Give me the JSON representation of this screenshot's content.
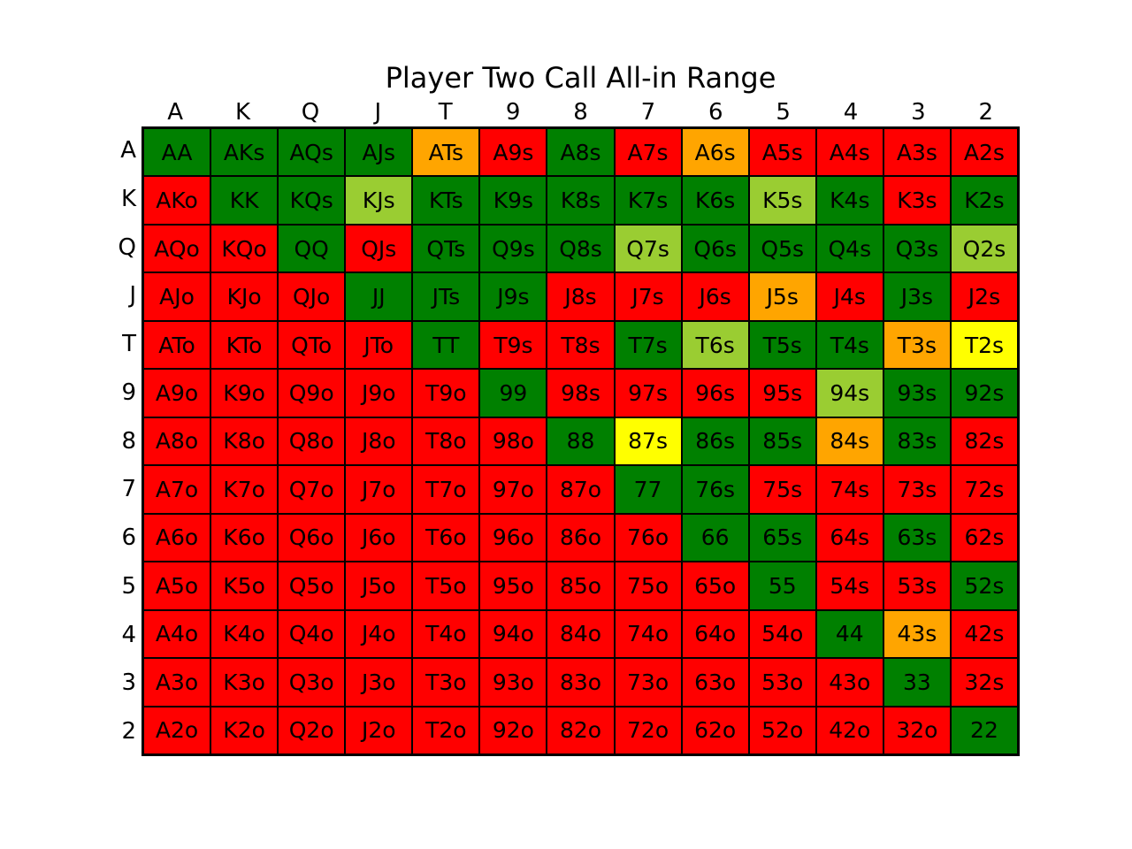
{
  "chart_data": {
    "type": "heatmap",
    "title": "Player Two Call All-in Range",
    "columns": [
      "A",
      "K",
      "Q",
      "J",
      "T",
      "9",
      "8",
      "7",
      "6",
      "5",
      "4",
      "3",
      "2"
    ],
    "rows": [
      "A",
      "K",
      "Q",
      "J",
      "T",
      "9",
      "8",
      "7",
      "6",
      "5",
      "4",
      "3",
      "2"
    ],
    "colors": {
      "G": "#008000",
      "L": "#9acd32",
      "O": "#ffa500",
      "Y": "#ffff00",
      "R": "#ff0000"
    },
    "cells": [
      [
        {
          "label": "AA",
          "c": "G"
        },
        {
          "label": "AKs",
          "c": "G"
        },
        {
          "label": "AQs",
          "c": "G"
        },
        {
          "label": "AJs",
          "c": "G"
        },
        {
          "label": "ATs",
          "c": "O"
        },
        {
          "label": "A9s",
          "c": "R"
        },
        {
          "label": "A8s",
          "c": "G"
        },
        {
          "label": "A7s",
          "c": "R"
        },
        {
          "label": "A6s",
          "c": "O"
        },
        {
          "label": "A5s",
          "c": "R"
        },
        {
          "label": "A4s",
          "c": "R"
        },
        {
          "label": "A3s",
          "c": "R"
        },
        {
          "label": "A2s",
          "c": "R"
        }
      ],
      [
        {
          "label": "AKo",
          "c": "R"
        },
        {
          "label": "KK",
          "c": "G"
        },
        {
          "label": "KQs",
          "c": "G"
        },
        {
          "label": "KJs",
          "c": "L"
        },
        {
          "label": "KTs",
          "c": "G"
        },
        {
          "label": "K9s",
          "c": "G"
        },
        {
          "label": "K8s",
          "c": "G"
        },
        {
          "label": "K7s",
          "c": "G"
        },
        {
          "label": "K6s",
          "c": "G"
        },
        {
          "label": "K5s",
          "c": "L"
        },
        {
          "label": "K4s",
          "c": "G"
        },
        {
          "label": "K3s",
          "c": "R"
        },
        {
          "label": "K2s",
          "c": "G"
        }
      ],
      [
        {
          "label": "AQo",
          "c": "R"
        },
        {
          "label": "KQo",
          "c": "R"
        },
        {
          "label": "QQ",
          "c": "G"
        },
        {
          "label": "QJs",
          "c": "R"
        },
        {
          "label": "QTs",
          "c": "G"
        },
        {
          "label": "Q9s",
          "c": "G"
        },
        {
          "label": "Q8s",
          "c": "G"
        },
        {
          "label": "Q7s",
          "c": "L"
        },
        {
          "label": "Q6s",
          "c": "G"
        },
        {
          "label": "Q5s",
          "c": "G"
        },
        {
          "label": "Q4s",
          "c": "G"
        },
        {
          "label": "Q3s",
          "c": "G"
        },
        {
          "label": "Q2s",
          "c": "L"
        }
      ],
      [
        {
          "label": "AJo",
          "c": "R"
        },
        {
          "label": "KJo",
          "c": "R"
        },
        {
          "label": "QJo",
          "c": "R"
        },
        {
          "label": "JJ",
          "c": "G"
        },
        {
          "label": "JTs",
          "c": "G"
        },
        {
          "label": "J9s",
          "c": "G"
        },
        {
          "label": "J8s",
          "c": "R"
        },
        {
          "label": "J7s",
          "c": "R"
        },
        {
          "label": "J6s",
          "c": "R"
        },
        {
          "label": "J5s",
          "c": "O"
        },
        {
          "label": "J4s",
          "c": "R"
        },
        {
          "label": "J3s",
          "c": "G"
        },
        {
          "label": "J2s",
          "c": "R"
        }
      ],
      [
        {
          "label": "ATo",
          "c": "R"
        },
        {
          "label": "KTo",
          "c": "R"
        },
        {
          "label": "QTo",
          "c": "R"
        },
        {
          "label": "JTo",
          "c": "R"
        },
        {
          "label": "TT",
          "c": "G"
        },
        {
          "label": "T9s",
          "c": "R"
        },
        {
          "label": "T8s",
          "c": "R"
        },
        {
          "label": "T7s",
          "c": "G"
        },
        {
          "label": "T6s",
          "c": "L"
        },
        {
          "label": "T5s",
          "c": "G"
        },
        {
          "label": "T4s",
          "c": "G"
        },
        {
          "label": "T3s",
          "c": "O"
        },
        {
          "label": "T2s",
          "c": "Y"
        }
      ],
      [
        {
          "label": "A9o",
          "c": "R"
        },
        {
          "label": "K9o",
          "c": "R"
        },
        {
          "label": "Q9o",
          "c": "R"
        },
        {
          "label": "J9o",
          "c": "R"
        },
        {
          "label": "T9o",
          "c": "R"
        },
        {
          "label": "99",
          "c": "G"
        },
        {
          "label": "98s",
          "c": "R"
        },
        {
          "label": "97s",
          "c": "R"
        },
        {
          "label": "96s",
          "c": "R"
        },
        {
          "label": "95s",
          "c": "R"
        },
        {
          "label": "94s",
          "c": "L"
        },
        {
          "label": "93s",
          "c": "G"
        },
        {
          "label": "92s",
          "c": "G"
        }
      ],
      [
        {
          "label": "A8o",
          "c": "R"
        },
        {
          "label": "K8o",
          "c": "R"
        },
        {
          "label": "Q8o",
          "c": "R"
        },
        {
          "label": "J8o",
          "c": "R"
        },
        {
          "label": "T8o",
          "c": "R"
        },
        {
          "label": "98o",
          "c": "R"
        },
        {
          "label": "88",
          "c": "G"
        },
        {
          "label": "87s",
          "c": "Y"
        },
        {
          "label": "86s",
          "c": "G"
        },
        {
          "label": "85s",
          "c": "G"
        },
        {
          "label": "84s",
          "c": "O"
        },
        {
          "label": "83s",
          "c": "G"
        },
        {
          "label": "82s",
          "c": "R"
        }
      ],
      [
        {
          "label": "A7o",
          "c": "R"
        },
        {
          "label": "K7o",
          "c": "R"
        },
        {
          "label": "Q7o",
          "c": "R"
        },
        {
          "label": "J7o",
          "c": "R"
        },
        {
          "label": "T7o",
          "c": "R"
        },
        {
          "label": "97o",
          "c": "R"
        },
        {
          "label": "87o",
          "c": "R"
        },
        {
          "label": "77",
          "c": "G"
        },
        {
          "label": "76s",
          "c": "G"
        },
        {
          "label": "75s",
          "c": "R"
        },
        {
          "label": "74s",
          "c": "R"
        },
        {
          "label": "73s",
          "c": "R"
        },
        {
          "label": "72s",
          "c": "R"
        }
      ],
      [
        {
          "label": "A6o",
          "c": "R"
        },
        {
          "label": "K6o",
          "c": "R"
        },
        {
          "label": "Q6o",
          "c": "R"
        },
        {
          "label": "J6o",
          "c": "R"
        },
        {
          "label": "T6o",
          "c": "R"
        },
        {
          "label": "96o",
          "c": "R"
        },
        {
          "label": "86o",
          "c": "R"
        },
        {
          "label": "76o",
          "c": "R"
        },
        {
          "label": "66",
          "c": "G"
        },
        {
          "label": "65s",
          "c": "G"
        },
        {
          "label": "64s",
          "c": "R"
        },
        {
          "label": "63s",
          "c": "G"
        },
        {
          "label": "62s",
          "c": "R"
        }
      ],
      [
        {
          "label": "A5o",
          "c": "R"
        },
        {
          "label": "K5o",
          "c": "R"
        },
        {
          "label": "Q5o",
          "c": "R"
        },
        {
          "label": "J5o",
          "c": "R"
        },
        {
          "label": "T5o",
          "c": "R"
        },
        {
          "label": "95o",
          "c": "R"
        },
        {
          "label": "85o",
          "c": "R"
        },
        {
          "label": "75o",
          "c": "R"
        },
        {
          "label": "65o",
          "c": "R"
        },
        {
          "label": "55",
          "c": "G"
        },
        {
          "label": "54s",
          "c": "R"
        },
        {
          "label": "53s",
          "c": "R"
        },
        {
          "label": "52s",
          "c": "G"
        }
      ],
      [
        {
          "label": "A4o",
          "c": "R"
        },
        {
          "label": "K4o",
          "c": "R"
        },
        {
          "label": "Q4o",
          "c": "R"
        },
        {
          "label": "J4o",
          "c": "R"
        },
        {
          "label": "T4o",
          "c": "R"
        },
        {
          "label": "94o",
          "c": "R"
        },
        {
          "label": "84o",
          "c": "R"
        },
        {
          "label": "74o",
          "c": "R"
        },
        {
          "label": "64o",
          "c": "R"
        },
        {
          "label": "54o",
          "c": "R"
        },
        {
          "label": "44",
          "c": "G"
        },
        {
          "label": "43s",
          "c": "O"
        },
        {
          "label": "42s",
          "c": "R"
        }
      ],
      [
        {
          "label": "A3o",
          "c": "R"
        },
        {
          "label": "K3o",
          "c": "R"
        },
        {
          "label": "Q3o",
          "c": "R"
        },
        {
          "label": "J3o",
          "c": "R"
        },
        {
          "label": "T3o",
          "c": "R"
        },
        {
          "label": "93o",
          "c": "R"
        },
        {
          "label": "83o",
          "c": "R"
        },
        {
          "label": "73o",
          "c": "R"
        },
        {
          "label": "63o",
          "c": "R"
        },
        {
          "label": "53o",
          "c": "R"
        },
        {
          "label": "43o",
          "c": "R"
        },
        {
          "label": "33",
          "c": "G"
        },
        {
          "label": "32s",
          "c": "R"
        }
      ],
      [
        {
          "label": "A2o",
          "c": "R"
        },
        {
          "label": "K2o",
          "c": "R"
        },
        {
          "label": "Q2o",
          "c": "R"
        },
        {
          "label": "J2o",
          "c": "R"
        },
        {
          "label": "T2o",
          "c": "R"
        },
        {
          "label": "92o",
          "c": "R"
        },
        {
          "label": "82o",
          "c": "R"
        },
        {
          "label": "72o",
          "c": "R"
        },
        {
          "label": "62o",
          "c": "R"
        },
        {
          "label": "52o",
          "c": "R"
        },
        {
          "label": "42o",
          "c": "R"
        },
        {
          "label": "32o",
          "c": "R"
        },
        {
          "label": "22",
          "c": "G"
        }
      ]
    ]
  }
}
